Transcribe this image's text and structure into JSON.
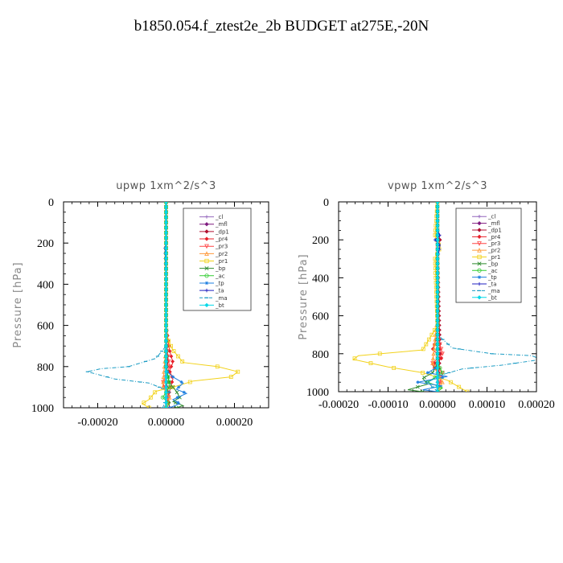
{
  "page": {
    "title": "b1850.054.f_ztest2e_2b  BUDGET at275E,-20N"
  },
  "legend_items": [
    {
      "label": "_cl",
      "color": "#9467bd",
      "marker": "+"
    },
    {
      "label": "_mfl",
      "color": "#7f1a7f",
      "marker": "diamond"
    },
    {
      "label": "_dp1",
      "color": "#b01030",
      "marker": "diamond"
    },
    {
      "label": "_pr4",
      "color": "#e8202a",
      "marker": "diamond"
    },
    {
      "label": "_pr3",
      "color": "#ff4444",
      "marker": "triangle-down"
    },
    {
      "label": "_pr2",
      "color": "#ff9a3c",
      "marker": "triangle-up"
    },
    {
      "label": "_pr1",
      "color": "#f2d21b",
      "marker": "square"
    },
    {
      "label": "_bp",
      "color": "#2e8b2e",
      "marker": "x"
    },
    {
      "label": "_ac",
      "color": "#32cd32",
      "marker": "circle"
    },
    {
      "label": "_tp",
      "color": "#1e7fe0",
      "marker": "star"
    },
    {
      "label": "_ta",
      "color": "#2020c0",
      "marker": "+"
    },
    {
      "label": "_ma",
      "color": "#1c9cc4",
      "marker": "dash"
    },
    {
      "label": "_bt",
      "color": "#00d8e8",
      "marker": "diamond"
    }
  ],
  "chart_data": [
    {
      "type": "line",
      "title": "upwp   1xm^2/s^3",
      "xlabel": "",
      "ylabel": "Pressure [hPa]",
      "xlim": [
        -0.0003,
        0.0003
      ],
      "ylim": [
        1000,
        0
      ],
      "xticks": [
        -0.0002,
        0.0,
        0.0002
      ],
      "xtick_labels": [
        "-0.00020",
        "0.00000",
        "0.00020"
      ],
      "yticks": [
        0,
        200,
        400,
        600,
        800,
        1000
      ],
      "ytick_labels": [
        "0",
        "200",
        "400",
        "600",
        "800",
        "1000"
      ],
      "legend_position": "top-right",
      "series": [
        {
          "name": "_cl",
          "x": [
            0,
            0,
            0,
            0,
            0,
            0,
            0
          ],
          "y": [
            0,
            200,
            400,
            600,
            800,
            900,
            1000
          ]
        },
        {
          "name": "_mfl",
          "x": [
            0,
            0,
            0,
            0,
            0,
            0,
            0
          ],
          "y": [
            0,
            200,
            400,
            600,
            800,
            900,
            1000
          ]
        },
        {
          "name": "_dp1",
          "x": [
            0,
            0,
            0,
            0,
            5e-06,
            0,
            1e-05
          ],
          "y": [
            0,
            200,
            400,
            600,
            780,
            850,
            1000
          ]
        },
        {
          "name": "_pr4",
          "x": [
            0,
            0,
            0,
            1e-05,
            2e-05,
            1e-05,
            2e-05,
            1e-05,
            0
          ],
          "y": [
            0,
            400,
            600,
            720,
            780,
            820,
            860,
            920,
            1000
          ]
        },
        {
          "name": "_pr3",
          "x": [
            0,
            0,
            5e-06,
            1e-05,
            -1e-05,
            1e-05,
            0
          ],
          "y": [
            0,
            600,
            750,
            800,
            880,
            940,
            1000
          ]
        },
        {
          "name": "_pr2",
          "x": [
            0,
            0,
            -1e-05,
            1e-05,
            0
          ],
          "y": [
            0,
            700,
            900,
            950,
            1000
          ]
        },
        {
          "name": "_pr1",
          "x": [
            0,
            0,
            2e-05,
            5e-05,
            0.00015,
            0.00021,
            0.00019,
            8e-05,
            2e-05,
            -3e-05,
            -4e-05,
            -5e-05,
            -7e-05,
            -5e-05
          ],
          "y": [
            0,
            650,
            720,
            780,
            800,
            825,
            850,
            870,
            900,
            920,
            940,
            960,
            980,
            1000
          ]
        },
        {
          "name": "_bp",
          "x": [
            0,
            0,
            1e-05,
            3e-05,
            4e-05,
            2e-05,
            5e-05,
            3e-05
          ],
          "y": [
            0,
            800,
            880,
            920,
            950,
            970,
            990,
            1000
          ]
        },
        {
          "name": "_ac",
          "x": [
            0,
            0,
            1e-05,
            -1e-05,
            1e-05,
            0
          ],
          "y": [
            0,
            800,
            900,
            950,
            980,
            1000
          ]
        },
        {
          "name": "_tp",
          "x": [
            0,
            0,
            2e-05,
            5e-05,
            3e-05,
            6e-05,
            2e-05,
            4e-05,
            1e-05
          ],
          "y": [
            0,
            820,
            850,
            880,
            910,
            930,
            960,
            980,
            1000
          ]
        },
        {
          "name": "_ta",
          "x": [
            0,
            0,
            0,
            0,
            -3e-06,
            0,
            0
          ],
          "y": [
            0,
            150,
            180,
            200,
            220,
            400,
            1000
          ]
        },
        {
          "name": "_ma",
          "x": [
            0,
            0,
            -3e-05,
            -0.00011,
            -0.00019,
            -0.00023,
            -0.00015,
            -5e-05,
            1e-05,
            -1e-05
          ],
          "y": [
            0,
            700,
            760,
            800,
            810,
            825,
            860,
            880,
            920,
            1000
          ]
        },
        {
          "name": "_bt",
          "x": [
            0,
            0,
            0,
            0,
            0,
            0
          ],
          "y": [
            0,
            200,
            400,
            600,
            800,
            1000
          ]
        }
      ]
    },
    {
      "type": "line",
      "title": "vpwp   1xm^2/s^3",
      "xlabel": "",
      "ylabel": "Pressure [hPa]",
      "xlim": [
        -0.0002,
        0.0002
      ],
      "ylim": [
        1000,
        0
      ],
      "xticks": [
        -0.0002,
        -0.0001,
        0.0,
        0.0001,
        0.0002
      ],
      "xtick_labels": [
        "-0.00020",
        "-0.00010",
        "0.00000",
        "0.00010",
        "0.00020"
      ],
      "yticks": [
        0,
        200,
        400,
        600,
        800,
        1000
      ],
      "ytick_labels": [
        "0",
        "200",
        "400",
        "600",
        "800",
        "1000"
      ],
      "legend_position": "top-right",
      "series": [
        {
          "name": "_cl",
          "x": [
            0,
            0,
            0,
            0,
            0,
            0
          ],
          "y": [
            0,
            200,
            400,
            600,
            800,
            1000
          ]
        },
        {
          "name": "_mfl",
          "x": [
            0,
            0,
            0,
            0,
            0,
            0
          ],
          "y": [
            0,
            200,
            400,
            600,
            800,
            1000
          ]
        },
        {
          "name": "_dp1",
          "x": [
            0,
            0,
            5e-06,
            0,
            5e-06,
            0
          ],
          "y": [
            0,
            150,
            200,
            250,
            800,
            1000
          ]
        },
        {
          "name": "_pr4",
          "x": [
            0,
            0,
            -1e-05,
            1e-05,
            -1e-05,
            0,
            0
          ],
          "y": [
            0,
            700,
            780,
            820,
            860,
            900,
            1000
          ]
        },
        {
          "name": "_pr3",
          "x": [
            0,
            0,
            1e-05,
            -1e-05,
            1e-05,
            0
          ],
          "y": [
            0,
            700,
            800,
            850,
            900,
            1000
          ]
        },
        {
          "name": "_pr2",
          "x": [
            0,
            0,
            -1e-05,
            1e-05,
            0
          ],
          "y": [
            0,
            600,
            850,
            950,
            1000
          ]
        },
        {
          "name": "_pr1",
          "x": [
            0,
            -5e-06,
            5e-06,
            -5e-06,
            0,
            -3e-05,
            -0.00016,
            -0.00017,
            -0.0001,
            -3e-05,
            2e-05,
            4e-05,
            6e-05
          ],
          "y": [
            0,
            180,
            240,
            300,
            650,
            780,
            810,
            830,
            870,
            900,
            940,
            970,
            1000
          ]
        },
        {
          "name": "_bp",
          "x": [
            0,
            0,
            -1e-05,
            -3e-05,
            -2e-05,
            -6e-05,
            -3e-05
          ],
          "y": [
            0,
            850,
            900,
            930,
            960,
            990,
            1000
          ]
        },
        {
          "name": "_ac",
          "x": [
            0,
            0,
            1e-05,
            -2e-05,
            1e-05,
            0
          ],
          "y": [
            0,
            850,
            900,
            950,
            980,
            1000
          ]
        },
        {
          "name": "_tp",
          "x": [
            0,
            0,
            -2e-05,
            2e-05,
            -4e-05,
            1e-05,
            -3e-05,
            0
          ],
          "y": [
            0,
            870,
            900,
            920,
            950,
            970,
            990,
            1000
          ]
        },
        {
          "name": "_ta",
          "x": [
            0,
            0,
            5e-06,
            -5e-06,
            5e-06,
            0,
            0
          ],
          "y": [
            0,
            150,
            180,
            200,
            230,
            300,
            1000
          ]
        },
        {
          "name": "_ma",
          "x": [
            0,
            0,
            3e-05,
            0.00011,
            0.00019,
            0.00021,
            0.00013,
            5e-05,
            1e-05,
            -2e-05,
            0
          ],
          "y": [
            0,
            700,
            770,
            800,
            810,
            830,
            860,
            880,
            910,
            950,
            1000
          ]
        },
        {
          "name": "_bt",
          "x": [
            0,
            0,
            0,
            0,
            0,
            0
          ],
          "y": [
            0,
            200,
            400,
            600,
            800,
            1000
          ]
        }
      ]
    }
  ]
}
